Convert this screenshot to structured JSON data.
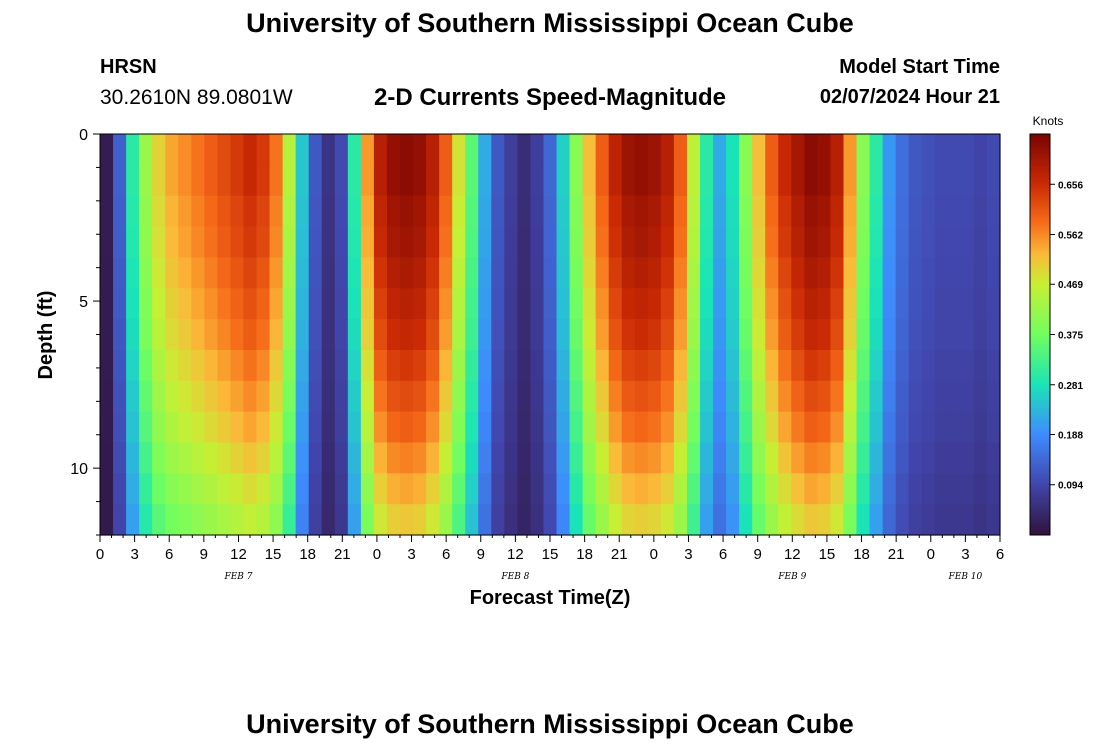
{
  "header": {
    "title": "University of Southern Mississippi Ocean Cube",
    "station": "HRSN",
    "coordinates": "30.2610N  89.0801W",
    "subtitle": "2-D Currents Speed-Magnitude",
    "model_start_label": "Model Start Time",
    "model_start_value": "02/07/2024 Hour 21"
  },
  "footer": {
    "title": "University of Southern Mississippi Ocean Cube"
  },
  "chart_data": {
    "type": "heatmap",
    "title": "2-D Currents Speed-Magnitude",
    "xlabel": "Forecast Time(Z)",
    "ylabel": "Depth (ft)",
    "x_range_hours": [
      0,
      78
    ],
    "y_range_ft": [
      0,
      12
    ],
    "y_ticks": [
      0,
      5,
      10
    ],
    "x_ticks": [
      "0",
      "3",
      "6",
      "9",
      "12",
      "15",
      "18",
      "21",
      "0",
      "3",
      "6",
      "9",
      "12",
      "15",
      "18",
      "21",
      "0",
      "3",
      "6",
      "9",
      "12",
      "15",
      "18",
      "21",
      "0",
      "3",
      "6"
    ],
    "day_labels": [
      {
        "label": "FEB 7",
        "hour": 12
      },
      {
        "label": "FEB 8",
        "hour": 36
      },
      {
        "label": "FEB 9",
        "hour": 60
      },
      {
        "label": "FEB 10",
        "hour": 75
      }
    ],
    "colorbar": {
      "unit": "Knots",
      "min": 0.0,
      "max": 0.75,
      "ticks": [
        0.656,
        0.562,
        0.469,
        0.375,
        0.281,
        0.188,
        0.094
      ]
    },
    "speed_surface_knots": [
      0.02,
      0.13,
      0.3,
      0.42,
      0.5,
      0.54,
      0.56,
      0.58,
      0.6,
      0.62,
      0.64,
      0.66,
      0.64,
      0.58,
      0.45,
      0.25,
      0.12,
      0.06,
      0.1,
      0.3,
      0.55,
      0.68,
      0.72,
      0.73,
      0.72,
      0.68,
      0.6,
      0.48,
      0.35,
      0.22,
      0.12,
      0.08,
      0.05,
      0.08,
      0.14,
      0.26,
      0.4,
      0.52,
      0.6,
      0.67,
      0.71,
      0.72,
      0.71,
      0.68,
      0.6,
      0.46,
      0.3,
      0.22,
      0.28,
      0.4,
      0.52,
      0.6,
      0.66,
      0.7,
      0.73,
      0.72,
      0.68,
      0.55,
      0.4,
      0.3,
      0.2,
      0.15,
      0.12,
      0.11,
      0.1,
      0.1,
      0.1,
      0.09,
      0.1
    ],
    "depth_scaling": [
      1.0,
      1.0,
      0.98,
      0.97,
      0.95,
      0.93,
      0.91,
      0.88,
      0.85,
      0.82,
      0.78,
      0.74,
      0.7
    ]
  }
}
